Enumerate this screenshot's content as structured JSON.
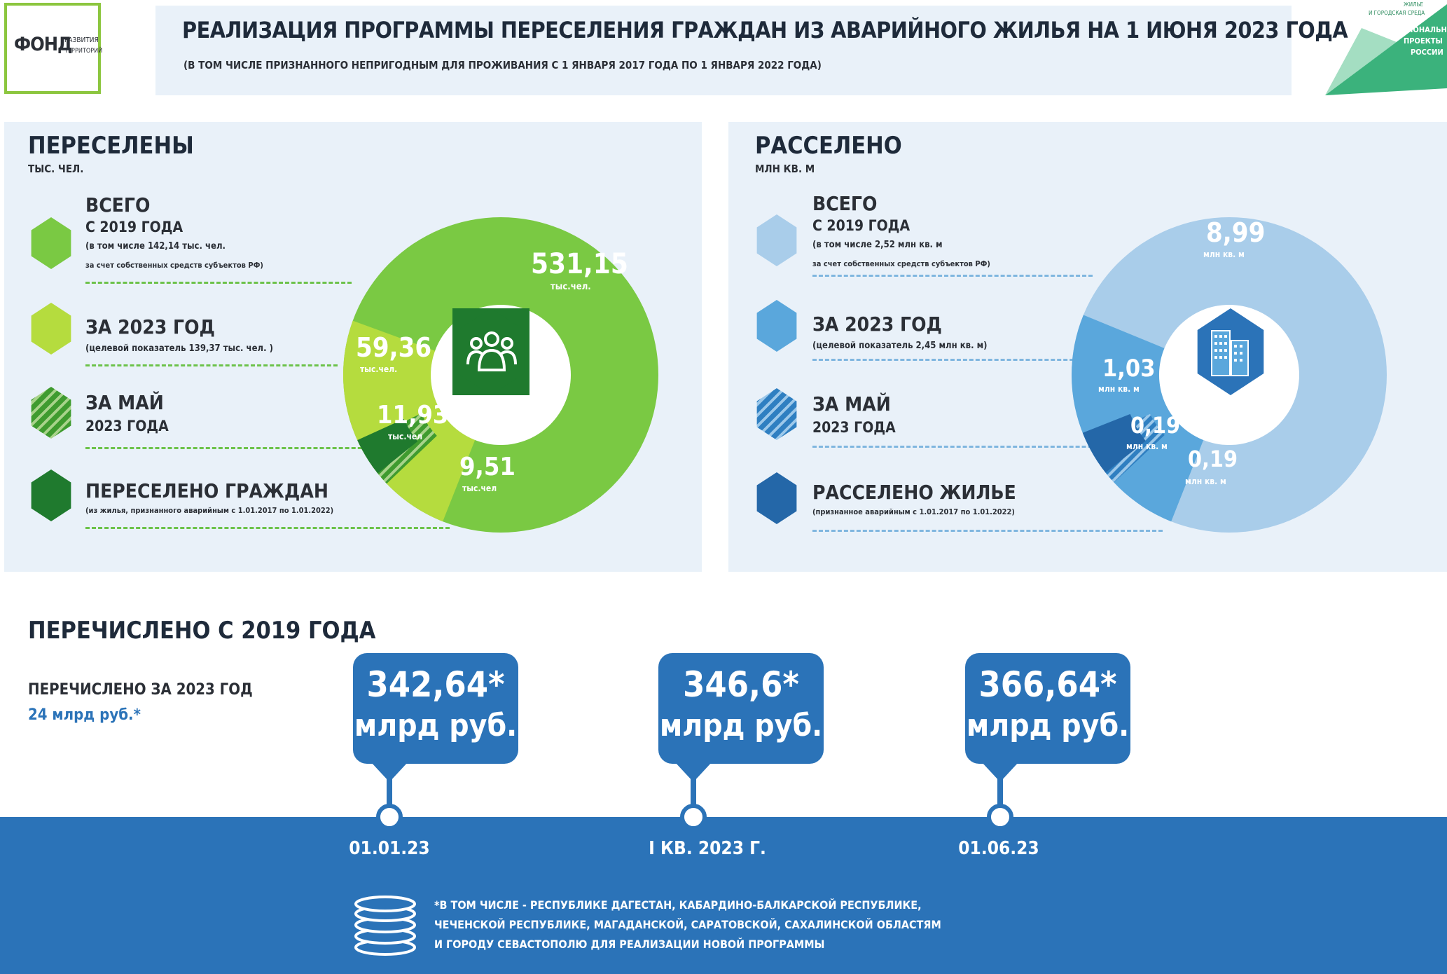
{
  "header": {
    "logo_main": "ФОНД",
    "logo_sub1": "РАЗВИТИЯ",
    "logo_sub2": "ТЕРРИТОРИЙ",
    "title": "РЕАЛИЗАЦИЯ ПРОГРАММЫ ПЕРЕСЕЛЕНИЯ ГРАЖДАН ИЗ АВАРИЙНОГО ЖИЛЬЯ НА 1 ИЮНЯ 2023 ГОДА",
    "subtitle": "(В ТОМ ЧИСЛЕ ПРИЗНАННОГО НЕПРИГОДНЫМ ДЛЯ ПРОЖИВАНИЯ С 1 ЯНВАРЯ 2017 ГОДА ПО 1 ЯНВАРЯ 2022 ГОДА)",
    "np_line1": "ЖИЛЬЕ",
    "np_line2": "И ГОРОДСКАЯ СРЕДА",
    "np_line3": "НАЦИОНАЛЬНЫЕ",
    "np_line4": "ПРОЕКТЫ",
    "np_line5": "РОССИИ"
  },
  "left_panel": {
    "title": "ПЕРЕСЕЛЕНЫ",
    "unit": "ТЫС. ЧЕЛ.",
    "legend": [
      {
        "title": "ВСЕГО",
        "line2": "С 2019 ГОДА",
        "note1": "(в том числе 142,14 тыс. чел.",
        "note2": "за счет собственных средств субъектов РФ)"
      },
      {
        "title": "ЗА 2023 ГОД",
        "note1": "(целевой показатель 139,37 тыс. чел. )"
      },
      {
        "title": "ЗА МАЙ",
        "line2": "2023 ГОДА"
      },
      {
        "title": "ПЕРЕСЕЛЕНО ГРАЖДАН",
        "note1": "(из жилья, признанного аварийным с 1.01.2017 по 1.01.2022)"
      }
    ],
    "labels": [
      {
        "value": "531,15",
        "unit": "тыс.чел."
      },
      {
        "value": "59,36",
        "unit": "тыс.чел."
      },
      {
        "value": "11,93",
        "unit": "тыс.чел"
      },
      {
        "value": "9,51",
        "unit": "тыс.чел"
      }
    ],
    "colors": {
      "total": "#7ac943",
      "year": "#b5dc3e",
      "may": "#3f9b2f",
      "resettled": "#1f7a2e",
      "icon_bg": "#1f7a2e"
    }
  },
  "right_panel": {
    "title": "РАССЕЛЕНО",
    "unit": "МЛН КВ. М",
    "legend": [
      {
        "title": "ВСЕГО",
        "line2": "С 2019 ГОДА",
        "note1": "(в том числе 2,52 млн кв. м",
        "note2": "за счет собственных средств субъектов РФ)"
      },
      {
        "title": "ЗА 2023 ГОД",
        "note1": "(целевой показатель 2,45 млн кв. м)"
      },
      {
        "title": "ЗА МАЙ",
        "line2": "2023 ГОДА"
      },
      {
        "title": "РАССЕЛЕНО ЖИЛЬЕ",
        "note1": "(признанное аварийным с 1.01.2017 по 1.01.2022)"
      }
    ],
    "labels": [
      {
        "value": "8,99",
        "unit": "млн кв. м"
      },
      {
        "value": "1,03",
        "unit": "млн кв. м"
      },
      {
        "value": "0,19",
        "unit": "млн кв. м"
      },
      {
        "value": "0,19",
        "unit": "млн кв. м"
      }
    ],
    "colors": {
      "total": "#a9cdea",
      "year": "#5aa7dc",
      "may": "#2f7fc1",
      "resettled": "#2467a8",
      "icon_bg": "#2b73b8"
    }
  },
  "transfers": {
    "title": "ПЕРЕЧИСЛЕНО С 2019 ГОДА",
    "year_label": "ПЕРЕЧИСЛЕНО ЗА 2023 ГОД",
    "year_value": "24 млрд руб.*",
    "unit": "млрд руб.",
    "points": [
      {
        "value": "342,64*",
        "date": "01.01.23"
      },
      {
        "value": "346,6*",
        "date": "I КВ. 2023 Г."
      },
      {
        "value": "366,64*",
        "date": "01.06.23"
      }
    ],
    "footnote1": "*В ТОМ ЧИСЛЕ - РЕСПУБЛИКЕ ДАГЕСТАН, КАБАРДИНО-БАЛКАРСКОЙ РЕСПУБЛИКЕ,",
    "footnote2": "ЧЕЧЕНСКОЙ РЕСПУБЛИКЕ, МАГАДАНСКОЙ, САРАТОВСКОЙ, САХАЛИНСКОЙ ОБЛАСТЯМ",
    "footnote3": "И ГОРОДУ СЕВАСТОПОЛЮ ДЛЯ РЕАЛИЗАЦИИ НОВОЙ ПРОГРАММЫ",
    "accent": "#2b73b8"
  },
  "chart_data": [
    {
      "type": "pie",
      "title": "ПЕРЕСЕЛЕНЫ",
      "unit": "ТЫС. ЧЕЛ.",
      "categories": [
        "ВСЕГО С 2019 ГОДА",
        "ЗА 2023 ГОД",
        "ЗА МАЙ 2023 ГОДА",
        "ПЕРЕСЕЛЕНО ГРАЖДАН"
      ],
      "values": [
        531.15,
        59.36,
        11.93,
        9.51
      ]
    },
    {
      "type": "pie",
      "title": "РАССЕЛЕНО",
      "unit": "МЛН КВ. М",
      "categories": [
        "ВСЕГО С 2019 ГОДА",
        "ЗА 2023 ГОД",
        "ЗА МАЙ 2023 ГОДА",
        "РАССЕЛЕНО ЖИЛЬЕ"
      ],
      "values": [
        8.99,
        1.03,
        0.19,
        0.19
      ]
    },
    {
      "type": "line",
      "title": "ПЕРЕЧИСЛЕНО С 2019 ГОДА",
      "unit": "млрд руб.",
      "categories": [
        "01.01.23",
        "I КВ. 2023 Г.",
        "01.06.23"
      ],
      "values": [
        342.64,
        346.6,
        366.64
      ]
    }
  ]
}
